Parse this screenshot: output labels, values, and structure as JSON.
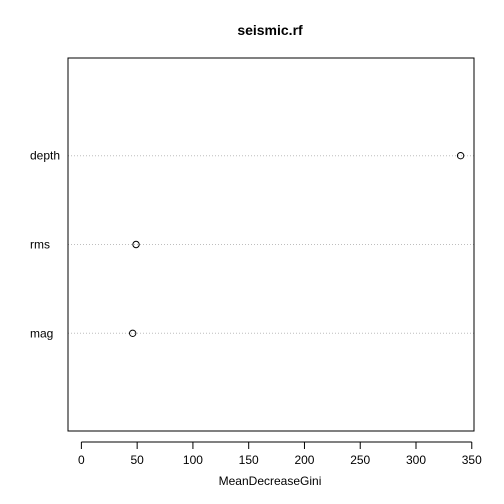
{
  "chart_data": {
    "type": "scatter",
    "title": "seismic.rf",
    "xlabel": "MeanDecreaseGini",
    "ylabel": "",
    "categories": [
      "depth",
      "rms",
      "mag"
    ],
    "values": [
      340,
      49,
      46
    ],
    "xlim": [
      -12,
      352
    ],
    "xticks": [
      0,
      50,
      100,
      150,
      200,
      250,
      300,
      350
    ],
    "grid": "horizontal dotted per category",
    "legend": "none",
    "point_style": "open-circle",
    "colors": {
      "points": "#000000",
      "grid": "#bebebe",
      "frame": "#000000"
    }
  }
}
